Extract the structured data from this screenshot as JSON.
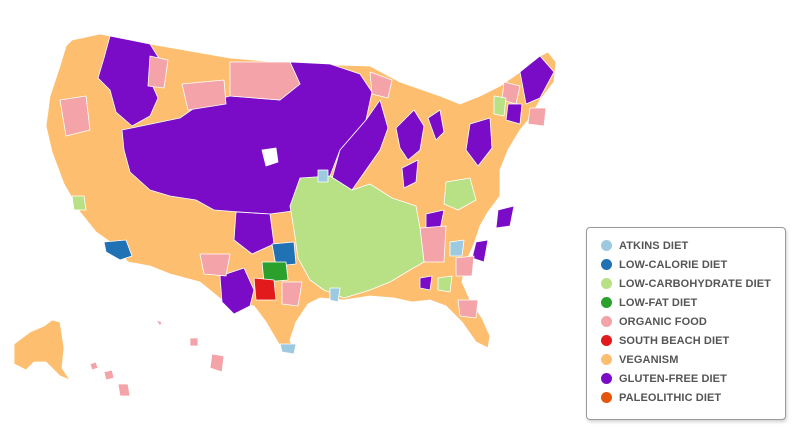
{
  "colors": {
    "atkins": "#9ecae1",
    "lowcal": "#2171b5",
    "lowcarb": "#b8e186",
    "lowfat": "#2ca02c",
    "organic": "#f4a3a8",
    "southbeach": "#e31a1c",
    "vegan": "#fdbf6f",
    "gluten": "#7a0cc7",
    "paleo": "#e6550d",
    "blank": "#ffffff"
  },
  "legend": {
    "items": [
      {
        "key": "atkins",
        "label": "ATKINS DIET"
      },
      {
        "key": "lowcal",
        "label": "LOW-CALORIE DIET"
      },
      {
        "key": "lowcarb",
        "label": "LOW-CARBOHYDRATE DIET"
      },
      {
        "key": "lowfat",
        "label": "LOW-FAT DIET"
      },
      {
        "key": "organic",
        "label": "ORGANIC FOOD"
      },
      {
        "key": "southbeach",
        "label": "SOUTH BEACH DIET"
      },
      {
        "key": "vegan",
        "label": "VEGANISM"
      },
      {
        "key": "gluten",
        "label": "GLUTEN-FREE DIET"
      },
      {
        "key": "paleo",
        "label": "PALEOLITHIC DIET"
      }
    ]
  }
}
